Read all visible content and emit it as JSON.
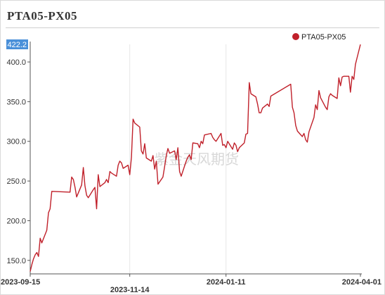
{
  "title": "PTA05-PX05",
  "watermark": "紫金天风期货",
  "chart_data": {
    "type": "line",
    "title": "PTA05-PX05",
    "xlabel": "",
    "ylabel": "",
    "ylim": [
      133,
      422.2
    ],
    "y_ticks": [
      150,
      200,
      250,
      300,
      350,
      400
    ],
    "y_tick_labels": [
      "150.0",
      "200.0",
      "250.0",
      "300.0",
      "350.0",
      "400.0"
    ],
    "y_max_label": "422.2",
    "x_tick_labels": [
      "2023-09-15",
      "2023-11-14",
      "2024-01-11",
      "2024-04-01"
    ],
    "x_tick_dates": [
      "2023-09-15",
      "2023-11-14",
      "2024-01-11",
      "2024-04-01"
    ],
    "legend_position": "top-right",
    "grid": "vertical",
    "series": [
      {
        "name": "PTA05-PX05",
        "color": "#c0202a",
        "points": [
          [
            "2023-09-15",
            136
          ],
          [
            "2023-09-16",
            145
          ],
          [
            "2023-09-17",
            152
          ],
          [
            "2023-09-18",
            157
          ],
          [
            "2023-09-19",
            160
          ],
          [
            "2023-09-20",
            155
          ],
          [
            "2023-09-21",
            178
          ],
          [
            "2023-09-22",
            172
          ],
          [
            "2023-09-25",
            188
          ],
          [
            "2023-09-26",
            210
          ],
          [
            "2023-09-27",
            215
          ],
          [
            "2023-09-28",
            237
          ],
          [
            "2023-10-09",
            236
          ],
          [
            "2023-10-10",
            255
          ],
          [
            "2023-10-11",
            252
          ],
          [
            "2023-10-12",
            242
          ],
          [
            "2023-10-13",
            230
          ],
          [
            "2023-10-16",
            245
          ],
          [
            "2023-10-17",
            267
          ],
          [
            "2023-10-18",
            244
          ],
          [
            "2023-10-19",
            232
          ],
          [
            "2023-10-20",
            229
          ],
          [
            "2023-10-23",
            239
          ],
          [
            "2023-10-24",
            242
          ],
          [
            "2023-10-25",
            215
          ],
          [
            "2023-10-26",
            258
          ],
          [
            "2023-10-27",
            243
          ],
          [
            "2023-10-30",
            248
          ],
          [
            "2023-10-31",
            252
          ],
          [
            "2023-11-01",
            248
          ],
          [
            "2023-11-02",
            262
          ],
          [
            "2023-11-03",
            260
          ],
          [
            "2023-11-06",
            256
          ],
          [
            "2023-11-07",
            270
          ],
          [
            "2023-11-08",
            275
          ],
          [
            "2023-11-09",
            273
          ],
          [
            "2023-11-10",
            266
          ],
          [
            "2023-11-13",
            270
          ],
          [
            "2023-11-14",
            258
          ],
          [
            "2023-11-15",
            280
          ],
          [
            "2023-11-16",
            328
          ],
          [
            "2023-11-17",
            323
          ],
          [
            "2023-11-20",
            318
          ],
          [
            "2023-11-21",
            288
          ],
          [
            "2023-11-22",
            284
          ],
          [
            "2023-11-23",
            297
          ],
          [
            "2023-11-24",
            279
          ],
          [
            "2023-11-27",
            275
          ],
          [
            "2023-11-28",
            282
          ],
          [
            "2023-11-29",
            265
          ],
          [
            "2023-11-30",
            275
          ],
          [
            "2023-12-01",
            246
          ],
          [
            "2023-12-04",
            255
          ],
          [
            "2023-12-05",
            268
          ],
          [
            "2023-12-06",
            282
          ],
          [
            "2023-12-07",
            291
          ],
          [
            "2023-12-08",
            285
          ],
          [
            "2023-12-11",
            288
          ],
          [
            "2023-12-12",
            277
          ],
          [
            "2023-12-13",
            292
          ],
          [
            "2023-12-14",
            262
          ],
          [
            "2023-12-15",
            256
          ],
          [
            "2023-12-18",
            275
          ],
          [
            "2023-12-19",
            280
          ],
          [
            "2023-12-20",
            283
          ],
          [
            "2023-12-21",
            277
          ],
          [
            "2023-12-22",
            298
          ],
          [
            "2023-12-25",
            297
          ],
          [
            "2023-12-26",
            292
          ],
          [
            "2023-12-27",
            300
          ],
          [
            "2023-12-28",
            297
          ],
          [
            "2023-12-29",
            308
          ],
          [
            "2024-01-02",
            310
          ],
          [
            "2024-01-03",
            305
          ],
          [
            "2024-01-04",
            302
          ],
          [
            "2024-01-05",
            300
          ],
          [
            "2024-01-08",
            310
          ],
          [
            "2024-01-09",
            295
          ],
          [
            "2024-01-10",
            296
          ],
          [
            "2024-01-11",
            292
          ],
          [
            "2024-01-12",
            300
          ],
          [
            "2024-01-15",
            290
          ],
          [
            "2024-01-16",
            298
          ],
          [
            "2024-01-17",
            295
          ],
          [
            "2024-01-18",
            287
          ],
          [
            "2024-01-19",
            292
          ],
          [
            "2024-01-22",
            298
          ],
          [
            "2024-01-23",
            309
          ],
          [
            "2024-01-24",
            310
          ],
          [
            "2024-01-25",
            374
          ],
          [
            "2024-01-26",
            360
          ],
          [
            "2024-01-29",
            356
          ],
          [
            "2024-01-30",
            347
          ],
          [
            "2024-01-31",
            336
          ],
          [
            "2024-02-01",
            336
          ],
          [
            "2024-02-02",
            342
          ],
          [
            "2024-02-05",
            347
          ],
          [
            "2024-02-06",
            344
          ],
          [
            "2024-02-07",
            357
          ],
          [
            "2024-02-19",
            372
          ],
          [
            "2024-02-20",
            343
          ],
          [
            "2024-02-21",
            336
          ],
          [
            "2024-02-22",
            320
          ],
          [
            "2024-02-23",
            313
          ],
          [
            "2024-02-26",
            306
          ],
          [
            "2024-02-27",
            310
          ],
          [
            "2024-02-28",
            302
          ],
          [
            "2024-02-29",
            299
          ],
          [
            "2024-03-01",
            312
          ],
          [
            "2024-03-04",
            330
          ],
          [
            "2024-03-05",
            346
          ],
          [
            "2024-03-06",
            340
          ],
          [
            "2024-03-07",
            364
          ],
          [
            "2024-03-08",
            355
          ],
          [
            "2024-03-11",
            343
          ],
          [
            "2024-03-12",
            340
          ],
          [
            "2024-03-13",
            356
          ],
          [
            "2024-03-14",
            360
          ],
          [
            "2024-03-15",
            358
          ],
          [
            "2024-03-18",
            354
          ],
          [
            "2024-03-19",
            380
          ],
          [
            "2024-03-20",
            370
          ],
          [
            "2024-03-21",
            381
          ],
          [
            "2024-03-22",
            382
          ],
          [
            "2024-03-25",
            382
          ],
          [
            "2024-03-26",
            362
          ],
          [
            "2024-03-27",
            382
          ],
          [
            "2024-03-28",
            378
          ],
          [
            "2024-03-29",
            397
          ],
          [
            "2024-04-01",
            422
          ]
        ]
      }
    ]
  }
}
